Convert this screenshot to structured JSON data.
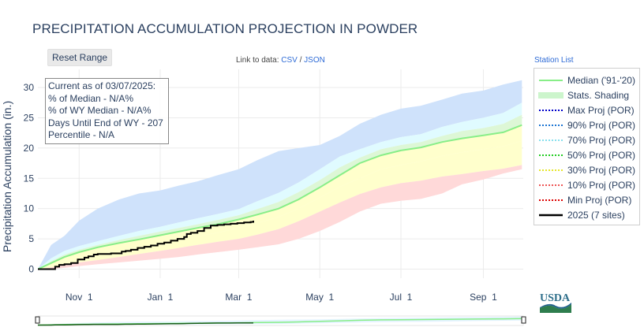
{
  "header": {
    "title": "PRECIPITATION ACCUMULATION PROJECTION IN POWDER"
  },
  "controls": {
    "reset_label": "Reset Range"
  },
  "links": {
    "prefix": "Link to data:",
    "csv": "CSV",
    "sep": "/",
    "json": "JSON",
    "station_list": "Station List"
  },
  "info": {
    "current": "Current as of 03/07/2025:",
    "pct_median": "% of Median - N/A%",
    "pct_wy_median": "% of WY Median - N/A%",
    "days_until": "Days Until End of WY - 207",
    "percentile": "Percentile - N/A"
  },
  "logo": {
    "text": "USDA"
  },
  "colors": {
    "median": "#88ee88",
    "stats_shading": "#ccf5cc",
    "max": "#0000cc",
    "p90": "#1f77d4",
    "p70": "#87e0ee",
    "p50": "#22cc22",
    "p30": "#e6e62a",
    "p10": "#ee5555",
    "min": "#dd0000",
    "current": "#000000",
    "band_top": "#cfe2fb",
    "band_upper": "#e0fbff",
    "band_mid": "#ddf7d6",
    "band_lower": "#ffffcc",
    "band_bottom": "#ffd9d9"
  },
  "chart_data": {
    "type": "line",
    "title": "PRECIPITATION ACCUMULATION PROJECTION IN POWDER",
    "ylabel": "Precipitation Accumulation (in.)",
    "xlabel": "",
    "x_tick_labels": [
      "Nov 1",
      "Jan 1",
      "Mar 1",
      "May 1",
      "Jul 1",
      "Sep 1"
    ],
    "x_tick_days": [
      31,
      92,
      151,
      212,
      273,
      335
    ],
    "y_ticks": [
      0,
      5,
      10,
      15,
      20,
      25,
      30
    ],
    "xlim_days": [
      0,
      365
    ],
    "ylim": [
      -1.5,
      33
    ],
    "legend": [
      {
        "name": "Median ('91-'20)",
        "style": "solid",
        "color_key": "median"
      },
      {
        "name": "Stats. Shading",
        "style": "band",
        "color_key": "stats_shading"
      },
      {
        "name": "Max Proj (POR)",
        "style": "dotted",
        "color_key": "max"
      },
      {
        "name": "90% Proj (POR)",
        "style": "dotted",
        "color_key": "p90"
      },
      {
        "name": "70% Proj (POR)",
        "style": "dotted",
        "color_key": "p70"
      },
      {
        "name": "50% Proj (POR)",
        "style": "dotted",
        "color_key": "p50"
      },
      {
        "name": "30% Proj (POR)",
        "style": "dotted",
        "color_key": "p30"
      },
      {
        "name": "10% Proj (POR)",
        "style": "dotted",
        "color_key": "p10"
      },
      {
        "name": "Min Proj (POR)",
        "style": "dotted",
        "color_key": "min"
      },
      {
        "name": "2025 (7 sites)",
        "style": "solid-thick",
        "color_key": "current"
      }
    ],
    "days": [
      0,
      10,
      20,
      31,
      45,
      61,
      76,
      92,
      106,
      120,
      135,
      151,
      165,
      181,
      196,
      212,
      227,
      242,
      258,
      273,
      288,
      304,
      319,
      335,
      350,
      364
    ],
    "median": [
      0,
      1.0,
      2.0,
      2.8,
      3.6,
      4.3,
      4.9,
      5.6,
      6.2,
      6.8,
      7.4,
      8.2,
      9.0,
      10.0,
      11.5,
      13.5,
      15.5,
      17.5,
      18.8,
      19.6,
      20.1,
      21.0,
      21.6,
      22.1,
      22.6,
      23.8
    ],
    "band_max": [
      0,
      4.0,
      5.5,
      8.0,
      10.0,
      11.5,
      12.5,
      13.0,
      13.8,
      14.5,
      15.5,
      16.5,
      18.0,
      19.5,
      20.0,
      20.5,
      22.0,
      24.0,
      25.5,
      26.5,
      27.0,
      28.0,
      29.0,
      29.5,
      30.5,
      31.2
    ],
    "band_p90": [
      0,
      1.8,
      3.0,
      3.8,
      4.6,
      5.5,
      6.3,
      7.0,
      7.7,
      8.4,
      9.1,
      9.9,
      11.2,
      12.6,
      14.3,
      16.5,
      18.6,
      19.8,
      21.0,
      21.8,
      22.3,
      23.5,
      24.3,
      25.0,
      25.8,
      27.5
    ],
    "band_p70": [
      0,
      1.3,
      2.4,
      3.2,
      4.0,
      4.8,
      5.5,
      6.2,
      6.8,
      7.4,
      8.1,
      8.9,
      9.9,
      11.1,
      12.7,
      14.7,
      16.8,
      18.4,
      19.8,
      20.5,
      21.0,
      22.0,
      22.8,
      23.3,
      24.0,
      25.5
    ],
    "band_p30": [
      0,
      0.5,
      1.3,
      1.8,
      2.4,
      3.0,
      3.6,
      4.2,
      4.8,
      5.4,
      6.0,
      6.8,
      7.6,
      8.6,
      10.0,
      11.8,
      13.6,
      15.0,
      16.5,
      17.2,
      17.8,
      18.7,
      19.3,
      19.8,
      20.3,
      21.2
    ],
    "band_p10": [
      0,
      0.3,
      0.7,
      1.1,
      1.5,
      2.0,
      2.5,
      3.0,
      3.5,
      4.0,
      4.5,
      5.0,
      5.7,
      6.6,
      7.9,
      9.5,
      11.0,
      12.4,
      13.5,
      14.2,
      14.6,
      15.3,
      15.7,
      16.2,
      16.6,
      17.2
    ],
    "band_min": [
      0,
      0,
      0.2,
      0.5,
      0.8,
      1.1,
      1.4,
      1.7,
      2.0,
      2.4,
      2.8,
      3.2,
      3.6,
      4.1,
      5.0,
      6.3,
      7.8,
      9.5,
      10.8,
      11.3,
      11.6,
      12.5,
      14.0,
      14.8,
      15.8,
      16.5
    ],
    "current_2025": {
      "days": [
        0,
        10,
        13,
        16,
        20,
        25,
        30,
        35,
        38,
        42,
        45,
        50,
        55,
        60,
        63,
        66,
        70,
        75,
        80,
        85,
        90,
        95,
        100,
        105,
        110,
        112,
        115,
        120,
        125,
        130,
        135,
        140,
        145,
        150,
        155,
        160,
        162
      ],
      "values": [
        0,
        0,
        0.4,
        0.7,
        0.8,
        1.0,
        1.6,
        1.9,
        2.1,
        2.4,
        2.5,
        2.5,
        2.6,
        2.6,
        2.9,
        3.0,
        3.2,
        3.5,
        3.7,
        3.9,
        4.2,
        4.4,
        4.7,
        5.0,
        5.3,
        5.8,
        6.0,
        6.3,
        6.8,
        7.2,
        7.3,
        7.4,
        7.5,
        7.6,
        7.7,
        7.8,
        8.0
      ]
    }
  }
}
